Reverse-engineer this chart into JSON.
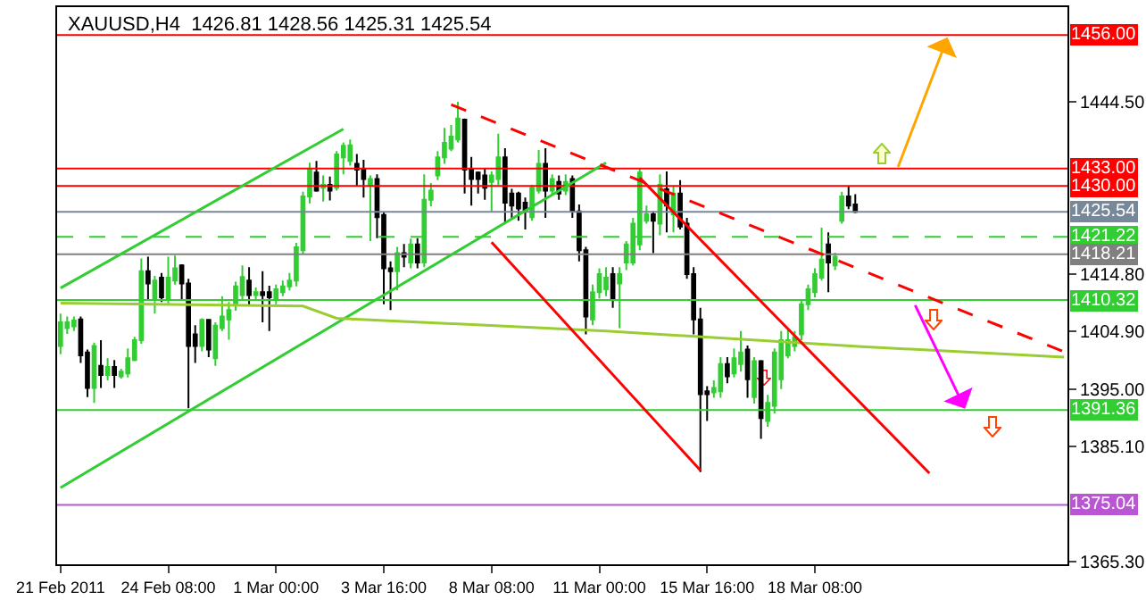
{
  "chart_data": {
    "type": "candlestick",
    "title": "XAUUSD,H4  1426.81 1428.56 1425.31 1425.54",
    "categories": [
      "21 Feb 2011",
      null,
      null,
      null,
      null,
      null,
      null,
      null,
      null,
      null,
      null,
      null,
      null,
      null,
      null,
      null,
      "24 Feb 08:00",
      null,
      null,
      null,
      null,
      null,
      null,
      null,
      null,
      null,
      null,
      null,
      null,
      null,
      null,
      null,
      "1 Mar 00:00",
      null,
      null,
      null,
      null,
      null,
      null,
      null,
      null,
      null,
      null,
      null,
      null,
      null,
      null,
      null,
      "3 Mar 16:00",
      null,
      null,
      null,
      null,
      null,
      null,
      null,
      null,
      null,
      null,
      null,
      null,
      null,
      null,
      null,
      "8 Mar 08:00",
      null,
      null,
      null,
      null,
      null,
      null,
      null,
      null,
      null,
      null,
      null,
      null,
      null,
      null,
      null,
      "11 Mar 00:00",
      null,
      null,
      null,
      null,
      null,
      null,
      null,
      null,
      null,
      null,
      null,
      null,
      null,
      null,
      null,
      "15 Mar 16:00",
      null,
      null,
      null,
      null,
      null,
      null,
      null,
      null,
      null,
      null,
      null,
      null,
      null,
      null,
      null,
      "18 Mar 08:00",
      null,
      null,
      null,
      null,
      null,
      null,
      null,
      null,
      null,
      null,
      null,
      null,
      null,
      null,
      null,
      null,
      null,
      null,
      null,
      null,
      null,
      null,
      null,
      null,
      null,
      null,
      null,
      null,
      null,
      null,
      null,
      null,
      null,
      null,
      null,
      null,
      null
    ],
    "ohlc": [
      [
        1402.4,
        1408,
        1401,
        1406.5
      ],
      [
        1405.5,
        1407.5,
        1404.5,
        1406.5
      ],
      [
        1405.8,
        1407.5,
        1405,
        1406.8
      ],
      [
        1407,
        1407.5,
        1399.5,
        1400.8
      ],
      [
        1401.3,
        1401.8,
        1393.6,
        1395.2
      ],
      [
        1395.2,
        1403,
        1392.6,
        1402.4
      ],
      [
        1399,
        1403.4,
        1395.2,
        1397.4
      ],
      [
        1397.4,
        1400.3,
        1396.5,
        1398.8
      ],
      [
        1398.8,
        1400,
        1395.2,
        1397.4
      ],
      [
        1397.2,
        1398.5,
        1396.8,
        1398
      ],
      [
        1397.7,
        1402,
        1397,
        1400.3
      ],
      [
        1400,
        1404,
        1399.8,
        1403.4
      ],
      [
        1403.4,
        1417.5,
        1402.8,
        1415.3
      ],
      [
        1415.3,
        1417.8,
        1410.5,
        1413.2
      ],
      [
        1410.6,
        1414.5,
        1408,
        1413.7
      ],
      [
        1414.2,
        1415,
        1410,
        1410.8
      ],
      [
        1410.4,
        1417.8,
        1409.5,
        1414.2
      ],
      [
        1413.7,
        1418,
        1413,
        1415.8
      ],
      [
        1416.3,
        1416.5,
        1410.5,
        1413.2
      ],
      [
        1413.2,
        1414,
        1391.7,
        1402.4
      ],
      [
        1404.4,
        1406,
        1399.5,
        1402.4
      ],
      [
        1402.4,
        1407.2,
        1401.5,
        1406.9
      ],
      [
        1406.9,
        1407,
        1400.5,
        1401.8
      ],
      [
        1400.3,
        1406.5,
        1399,
        1405.9
      ],
      [
        1405.5,
        1411,
        1405,
        1407.5
      ],
      [
        1407,
        1410,
        1403.5,
        1408.6
      ],
      [
        1409.6,
        1413.5,
        1408.5,
        1412.7
      ],
      [
        1411.2,
        1416.3,
        1410.2,
        1414.3
      ],
      [
        1413.7,
        1416,
        1409.4,
        1411.2
      ],
      [
        1411.2,
        1412.5,
        1410.3,
        1411.7
      ],
      [
        1411.7,
        1415.3,
        1406.5,
        1411.2
      ],
      [
        1411.7,
        1412.8,
        1405,
        1410.8
      ],
      [
        1410.6,
        1413,
        1409.6,
        1412.2
      ],
      [
        1411.7,
        1413.7,
        1411,
        1412.7
      ],
      [
        1412.7,
        1415,
        1412,
        1413.7
      ],
      [
        1413.7,
        1420.2,
        1412.7,
        1419.4
      ],
      [
        1418.9,
        1429,
        1418.3,
        1428.2
      ],
      [
        1428.2,
        1434,
        1427,
        1432.8
      ],
      [
        1432.3,
        1434.3,
        1429,
        1429.2
      ],
      [
        1429.7,
        1431.8,
        1427.3,
        1430.2
      ],
      [
        1430.2,
        1431.6,
        1427.5,
        1429.2
      ],
      [
        1429.7,
        1436,
        1429.2,
        1435.4
      ],
      [
        1434.9,
        1437.5,
        1432,
        1436.9
      ],
      [
        1434.3,
        1438,
        1433.5,
        1437
      ],
      [
        1433.8,
        1435.5,
        1430,
        1432.8
      ],
      [
        1432.8,
        1434.5,
        1428,
        1431.2
      ],
      [
        1430.2,
        1431.8,
        1420.5,
        1431.2
      ],
      [
        1431.2,
        1432,
        1421,
        1424.6
      ],
      [
        1425,
        1425.5,
        1409.6,
        1415.8
      ],
      [
        1415.8,
        1417,
        1408.6,
        1415.3
      ],
      [
        1415.3,
        1419.5,
        1412,
        1418.4
      ],
      [
        1418.4,
        1420,
        1416,
        1417.8
      ],
      [
        1416.8,
        1420.9,
        1415.8,
        1419.9
      ],
      [
        1419.9,
        1421,
        1415.8,
        1416.8
      ],
      [
        1416.8,
        1432,
        1416,
        1427.6
      ],
      [
        1427.6,
        1430.5,
        1426.5,
        1429.2
      ],
      [
        1431.8,
        1436,
        1431,
        1434.9
      ],
      [
        1434.9,
        1440,
        1433.8,
        1437.4
      ],
      [
        1436.4,
        1440.5,
        1436,
        1438.5
      ],
      [
        1438,
        1444.5,
        1437.5,
        1441.6
      ],
      [
        1441.4,
        1441.6,
        1428.7,
        1432.8
      ],
      [
        1432.8,
        1435,
        1426.6,
        1431.2
      ],
      [
        1432.3,
        1432.5,
        1428.7,
        1431.2
      ],
      [
        1431.8,
        1433,
        1427.6,
        1429.7
      ],
      [
        1430.7,
        1432.5,
        1425.6,
        1431.8
      ],
      [
        1431.2,
        1439,
        1430.2,
        1434.9
      ],
      [
        1434.9,
        1436.5,
        1423.5,
        1427.1
      ],
      [
        1428.7,
        1429.5,
        1424.5,
        1426.6
      ],
      [
        1428.7,
        1429,
        1424,
        1426.1
      ],
      [
        1427.1,
        1428,
        1422.5,
        1425.6
      ],
      [
        1424.6,
        1430.2,
        1424,
        1429.7
      ],
      [
        1429.2,
        1436.2,
        1428.7,
        1433.8
      ],
      [
        1433.8,
        1436.5,
        1424.5,
        1429.2
      ],
      [
        1429.2,
        1432,
        1428.5,
        1431.2
      ],
      [
        1430.7,
        1431.8,
        1427.6,
        1428.7
      ],
      [
        1429.2,
        1432,
        1428.4,
        1430.7
      ],
      [
        1431.2,
        1431.8,
        1424.5,
        1425.6
      ],
      [
        1425.6,
        1426.8,
        1417,
        1418.9
      ],
      [
        1418.9,
        1419.5,
        1404.4,
        1407.5
      ],
      [
        1407,
        1413,
        1406,
        1411.7
      ],
      [
        1411.7,
        1415.8,
        1410.6,
        1414.8
      ],
      [
        1412.2,
        1416,
        1411,
        1414.2
      ],
      [
        1414.8,
        1416,
        1409,
        1410.6
      ],
      [
        1413.2,
        1416,
        1405.5,
        1414.8
      ],
      [
        1416.8,
        1420.5,
        1415.5,
        1419.9
      ],
      [
        1416.8,
        1424.5,
        1416.3,
        1423.5
      ],
      [
        1419.9,
        1433,
        1418.9,
        1432.3
      ],
      [
        1424,
        1426.6,
        1423.5,
        1425.1
      ],
      [
        1425.1,
        1425.6,
        1418.4,
        1424
      ],
      [
        1423.5,
        1432,
        1421.5,
        1430.2
      ],
      [
        1429.4,
        1432.5,
        1422,
        1426.6
      ],
      [
        1425.1,
        1430,
        1422,
        1428.7
      ],
      [
        1428.7,
        1431,
        1422.5,
        1423
      ],
      [
        1423.5,
        1424.5,
        1414,
        1414.8
      ],
      [
        1414.8,
        1416,
        1404.4,
        1407
      ],
      [
        1407,
        1409,
        1380.7,
        1394.1
      ],
      [
        1394.6,
        1395.5,
        1389.5,
        1394.1
      ],
      [
        1394.4,
        1396.5,
        1393.5,
        1395.2
      ],
      [
        1394.6,
        1400.5,
        1393.5,
        1399.3
      ],
      [
        1399.3,
        1400.5,
        1396,
        1397.2
      ],
      [
        1397.7,
        1402,
        1397,
        1400.3
      ],
      [
        1399.3,
        1405,
        1398,
        1401.3
      ],
      [
        1401.8,
        1402.5,
        1393.5,
        1396.7
      ],
      [
        1393.6,
        1400.5,
        1392.5,
        1399.8
      ],
      [
        1399.8,
        1400,
        1386.4,
        1390
      ],
      [
        1389.5,
        1394,
        1388.5,
        1392.6
      ],
      [
        1392.1,
        1402,
        1390.8,
        1401.3
      ],
      [
        1396.7,
        1405,
        1395,
        1403.4
      ],
      [
        1400.8,
        1405.5,
        1400.3,
        1403.4
      ],
      [
        1402.4,
        1405,
        1401.5,
        1403.9
      ],
      [
        1404.4,
        1410.5,
        1403.4,
        1409.6
      ],
      [
        1409.6,
        1413,
        1408.6,
        1412.2
      ],
      [
        1411.7,
        1415.8,
        1410.8,
        1414.8
      ],
      [
        1414.2,
        1422.8,
        1413.7,
        1417.3
      ],
      [
        1419.9,
        1422,
        1411.7,
        1416.8
      ],
      [
        1416.3,
        1418.5,
        1415.5,
        1417.8
      ],
      [
        1424,
        1429,
        1423.5,
        1428.2
      ],
      [
        1428.2,
        1430,
        1426,
        1426.6
      ],
      [
        1426.81,
        1428.56,
        1425.31,
        1425.54
      ],
      null,
      null,
      null,
      null,
      null,
      null,
      null,
      null,
      null,
      null,
      null,
      null,
      null,
      null,
      null,
      null,
      null,
      null,
      null,
      null,
      null,
      null,
      null,
      null,
      null,
      null,
      null,
      null,
      null,
      null,
      null
    ],
    "ylim": [
      1364.8,
      1460.8
    ],
    "yticks": [
      {
        "value": 1444.5,
        "label": "1444.50"
      },
      {
        "value": 1414.8,
        "label": "1414.80"
      },
      {
        "value": 1404.9,
        "label": "1404.90"
      },
      {
        "value": 1395,
        "label": "1395.00"
      },
      {
        "value": 1385.1,
        "label": "1385.10"
      },
      {
        "value": 1365.3,
        "label": "1365.30"
      }
    ],
    "grid": false,
    "ref_lines": [
      {
        "axis": "y",
        "value": 1456,
        "label": "1456.00",
        "color": "#ff0000"
      },
      {
        "axis": "y",
        "value": 1433,
        "label": "1433.00",
        "color": "#ff0000"
      },
      {
        "axis": "y",
        "value": 1430,
        "label": "1430.00",
        "color": "#ff0000"
      },
      {
        "axis": "y",
        "value": 1425.54,
        "label": "1425.54",
        "color": "#778899"
      },
      {
        "axis": "y",
        "value": 1421.22,
        "label": "1421.22",
        "color": "#32cd32",
        "line_style": "dashed"
      },
      {
        "axis": "y",
        "value": 1418.21,
        "label": "1418.21",
        "color": "#808080"
      },
      {
        "axis": "y",
        "value": 1410.32,
        "label": "1410.32",
        "color": "#32cd32"
      },
      {
        "axis": "y",
        "value": 1391.36,
        "label": "1391.36",
        "color": "#32cd32"
      },
      {
        "axis": "y",
        "value": 1375.04,
        "label": "1375.04",
        "color": "#ba55d3"
      }
    ],
    "series": [
      {
        "type": "line",
        "color": "#32cd32",
        "values": [
          1412.4,
          null,
          null,
          null,
          null,
          null,
          null,
          null,
          null,
          null,
          null,
          null,
          null,
          null,
          null,
          null,
          null,
          null,
          null,
          null,
          null,
          null,
          null,
          null,
          null,
          null,
          null,
          null,
          null,
          null,
          null,
          null,
          null,
          null,
          null,
          null,
          null,
          null,
          null,
          null,
          null,
          null,
          1439.8,
          null,
          null,
          null,
          null,
          null,
          null,
          null,
          null,
          null,
          null,
          null,
          null,
          null,
          null,
          null,
          null,
          null,
          null,
          null,
          null,
          null,
          null,
          null,
          null,
          null,
          null,
          null,
          null,
          null,
          null,
          null,
          null,
          null,
          null,
          null,
          null,
          null,
          null,
          null,
          null,
          null,
          null,
          null,
          null,
          null,
          null,
          null,
          null,
          null,
          null,
          null,
          null,
          null,
          null,
          null,
          null,
          null,
          null,
          null,
          null,
          null,
          null,
          null,
          null,
          null,
          null,
          null,
          null,
          null,
          null,
          null,
          null,
          null,
          null,
          null,
          null,
          null,
          null,
          null,
          null,
          null,
          null,
          null,
          null,
          null,
          null,
          null,
          null,
          null,
          null,
          null,
          null,
          null,
          null,
          null,
          null,
          null,
          null,
          null,
          null,
          null,
          null,
          null,
          null,
          null,
          null,
          null
        ]
      },
      {
        "type": "line",
        "color": "#32cd32",
        "values": [
          1378.0,
          null,
          null,
          null,
          null,
          null,
          null,
          null,
          null,
          null,
          null,
          null,
          null,
          null,
          null,
          null,
          null,
          null,
          null,
          null,
          null,
          null,
          null,
          null,
          null,
          null,
          null,
          null,
          null,
          null,
          null,
          null,
          null,
          null,
          null,
          null,
          null,
          null,
          null,
          null,
          null,
          null,
          null,
          null,
          null,
          null,
          null,
          null,
          null,
          null,
          null,
          null,
          null,
          null,
          null,
          null,
          null,
          null,
          null,
          null,
          null,
          null,
          null,
          null,
          null,
          null,
          null,
          null,
          null,
          null,
          null,
          null,
          null,
          null,
          null,
          null,
          null,
          null,
          null,
          null,
          null,
          1434.0,
          null,
          null,
          null,
          null,
          null,
          null,
          null,
          null,
          null,
          null,
          null,
          null,
          null,
          null,
          null,
          null,
          null,
          null,
          null,
          null,
          null,
          null,
          null,
          null,
          null,
          null,
          null,
          null,
          null,
          null,
          null,
          null,
          null,
          null,
          null,
          null,
          null,
          null,
          null,
          null,
          null,
          null,
          null,
          null,
          null,
          null,
          null,
          null,
          null,
          null,
          null,
          null,
          null,
          null,
          null,
          null,
          null,
          null,
          null,
          null,
          null,
          null,
          null,
          null,
          null,
          null,
          null,
          null
        ]
      },
      {
        "type": "line",
        "color": "#9acd32",
        "values": [
          1409.8,
          null,
          null,
          null,
          null,
          null,
          null,
          null,
          null,
          null,
          null,
          null,
          null,
          null,
          null,
          null,
          null,
          null,
          null,
          null,
          null,
          null,
          null,
          null,
          null,
          null,
          null,
          null,
          null,
          null,
          null,
          null,
          null,
          null,
          null,
          null,
          1409.3,
          null,
          null,
          null,
          null,
          1407.2,
          null,
          null,
          null,
          null,
          null,
          null,
          null,
          null,
          null,
          null,
          null,
          null,
          null,
          null,
          null,
          null,
          null,
          null,
          null,
          null,
          null,
          null,
          null,
          null,
          null,
          null,
          null,
          null,
          null,
          null,
          null,
          null,
          null,
          null,
          null,
          null,
          null,
          null,
          null,
          1405.0,
          null,
          null,
          null,
          null,
          null,
          null,
          null,
          null,
          null,
          null,
          null,
          null,
          null,
          null,
          null,
          null,
          null,
          null,
          null,
          null,
          null,
          null,
          null,
          null,
          null,
          null,
          null,
          null,
          null,
          null,
          null,
          null,
          null,
          null,
          null,
          null,
          null,
          1402.3,
          null,
          null,
          null,
          null,
          null,
          null,
          null,
          null,
          null,
          null,
          null,
          null,
          null,
          null,
          null,
          null,
          null,
          null,
          null,
          null,
          null,
          null,
          null,
          null,
          null,
          null,
          null,
          null,
          null,
          1400.5
        ]
      },
      {
        "type": "line",
        "color": "#ff0000",
        "line_style": "dashed",
        "values": [
          null,
          null,
          null,
          null,
          null,
          null,
          null,
          null,
          null,
          null,
          null,
          null,
          null,
          null,
          null,
          null,
          null,
          null,
          null,
          null,
          null,
          null,
          null,
          null,
          null,
          null,
          null,
          null,
          null,
          null,
          null,
          null,
          null,
          null,
          null,
          null,
          null,
          null,
          null,
          null,
          null,
          null,
          null,
          null,
          null,
          null,
          null,
          null,
          null,
          null,
          null,
          null,
          null,
          null,
          null,
          null,
          null,
          null,
          1444.0,
          null,
          null,
          null,
          null,
          null,
          null,
          null,
          null,
          null,
          null,
          null,
          null,
          null,
          null,
          null,
          null,
          null,
          null,
          null,
          null,
          null,
          null,
          null,
          null,
          null,
          null,
          null,
          null,
          null,
          null,
          null,
          null,
          null,
          null,
          null,
          null,
          null,
          null,
          null,
          null,
          null,
          null,
          null,
          null,
          null,
          null,
          null,
          null,
          null,
          null,
          null,
          null,
          null,
          null,
          null,
          null,
          null,
          null,
          null,
          null,
          null,
          null,
          null,
          null,
          null,
          null,
          null,
          null,
          null,
          null,
          null,
          null,
          null,
          null,
          null,
          null,
          null,
          null,
          null,
          null,
          null,
          null,
          null,
          null,
          null,
          null,
          null,
          null,
          null,
          null,
          1401.4
        ]
      },
      {
        "type": "line",
        "color": "#ff0000",
        "values": [
          null,
          null,
          null,
          null,
          null,
          null,
          null,
          null,
          null,
          null,
          null,
          null,
          null,
          null,
          null,
          null,
          null,
          null,
          null,
          null,
          null,
          null,
          null,
          null,
          null,
          null,
          null,
          null,
          null,
          null,
          null,
          null,
          null,
          null,
          null,
          null,
          null,
          null,
          null,
          null,
          null,
          null,
          null,
          null,
          null,
          null,
          null,
          null,
          null,
          null,
          null,
          null,
          null,
          null,
          null,
          null,
          null,
          null,
          null,
          null,
          null,
          null,
          null,
          null,
          1420.3,
          null,
          null,
          null,
          null,
          null,
          null,
          null,
          null,
          null,
          null,
          null,
          null,
          null,
          null,
          null,
          null,
          null,
          null,
          null,
          null,
          null,
          null,
          null,
          null,
          null,
          null,
          null,
          null,
          null,
          null,
          1381.0,
          null,
          null,
          null,
          null,
          null,
          null,
          null,
          null,
          null,
          null,
          null,
          null,
          null,
          null,
          null,
          null,
          null,
          null,
          null,
          null,
          null,
          null,
          null,
          null,
          null,
          null,
          null,
          null,
          null,
          null,
          null,
          null,
          null,
          null,
          null,
          null,
          null,
          null,
          null,
          null,
          null,
          null,
          null,
          null,
          null,
          null,
          null,
          null,
          null,
          null,
          null,
          null,
          null,
          null
        ]
      },
      {
        "type": "line",
        "color": "#ff0000",
        "values": [
          null,
          null,
          null,
          null,
          null,
          null,
          null,
          null,
          null,
          null,
          null,
          null,
          null,
          null,
          null,
          null,
          null,
          null,
          null,
          null,
          null,
          null,
          null,
          null,
          null,
          null,
          null,
          null,
          null,
          null,
          null,
          null,
          null,
          null,
          null,
          null,
          null,
          null,
          null,
          null,
          null,
          null,
          null,
          null,
          null,
          null,
          null,
          null,
          null,
          null,
          null,
          null,
          null,
          null,
          null,
          null,
          null,
          null,
          null,
          null,
          null,
          null,
          null,
          null,
          null,
          null,
          null,
          null,
          null,
          null,
          null,
          null,
          null,
          null,
          null,
          null,
          null,
          null,
          null,
          null,
          null,
          null,
          null,
          null,
          null,
          null,
          1431.4,
          null,
          null,
          null,
          null,
          null,
          null,
          null,
          null,
          null,
          null,
          null,
          null,
          null,
          null,
          null,
          null,
          null,
          null,
          null,
          null,
          null,
          null,
          null,
          null,
          null,
          null,
          null,
          null,
          null,
          null,
          null,
          null,
          null,
          null,
          null,
          null,
          null,
          null,
          null,
          null,
          null,
          null,
          1380.5,
          null,
          null,
          null,
          null,
          null,
          null,
          null,
          null,
          null,
          null,
          null,
          null,
          null,
          null,
          null,
          null,
          null,
          null,
          null,
          null
        ]
      }
    ]
  }
}
